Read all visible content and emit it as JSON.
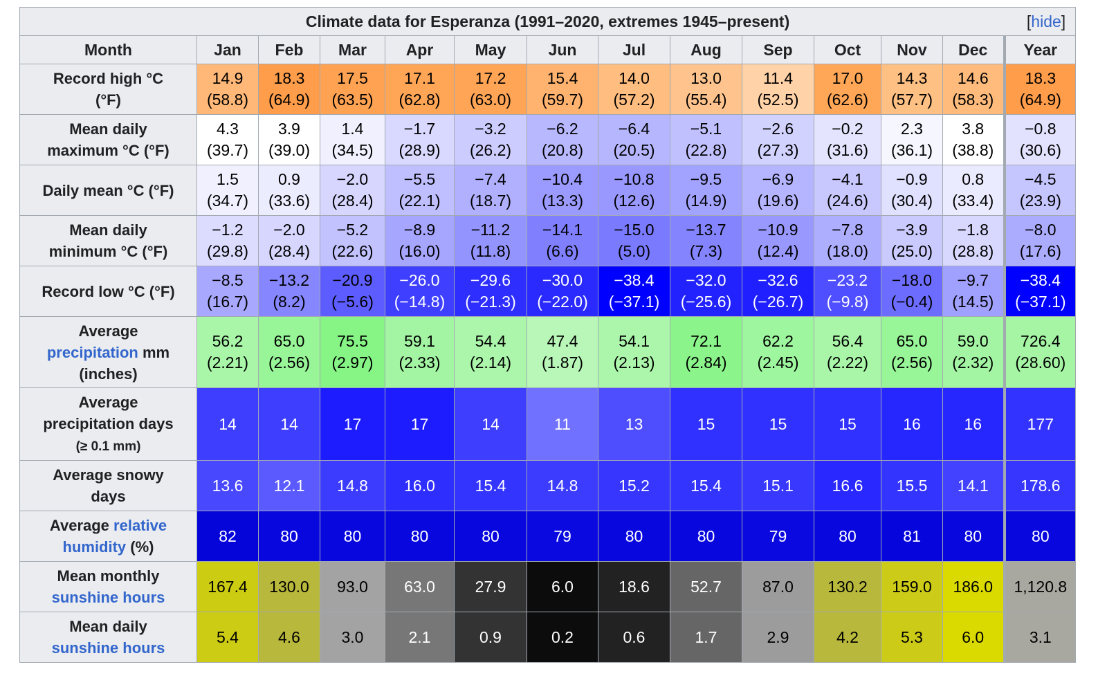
{
  "title": "Climate data for Esperanza (1991–2020, extremes 1945–present)",
  "hide_link": "hide",
  "month_header": "Month",
  "months": [
    "Jan",
    "Feb",
    "Mar",
    "Apr",
    "May",
    "Jun",
    "Jul",
    "Aug",
    "Sep",
    "Oct",
    "Nov",
    "Dec",
    "Year"
  ],
  "rows": [
    {
      "key": "record-high",
      "label_parts": [
        {
          "text": "Record high °C"
        },
        {
          "br": true
        },
        {
          "text": "(°F)"
        }
      ],
      "values": [
        "14.9",
        "18.3",
        "17.5",
        "17.1",
        "17.2",
        "15.4",
        "14.0",
        "13.0",
        "11.4",
        "17.0",
        "14.3",
        "14.6",
        "18.3"
      ],
      "sub": [
        "(58.8)",
        "(64.9)",
        "(63.5)",
        "(62.8)",
        "(63.0)",
        "(59.7)",
        "(57.2)",
        "(55.4)",
        "(52.5)",
        "(62.6)",
        "(57.7)",
        "(58.3)",
        "(64.9)"
      ],
      "bg": [
        "#ffb877",
        "#ff9d4a",
        "#ffa352",
        "#ffa656",
        "#ffa555",
        "#ffb36f",
        "#ffbd80",
        "#ffc48d",
        "#ffd2a7",
        "#ffa757",
        "#ffc083",
        "#ffbb7c",
        "#ff9d4a"
      ],
      "fg": [
        "#000000",
        "#000000",
        "#000000",
        "#000000",
        "#000000",
        "#000000",
        "#000000",
        "#000000",
        "#000000",
        "#000000",
        "#000000",
        "#000000",
        "#000000"
      ],
      "height": 73
    },
    {
      "key": "mean-max",
      "label_parts": [
        {
          "text": "Mean daily"
        },
        {
          "br": true
        },
        {
          "text": "maximum °C (°F)"
        }
      ],
      "values": [
        "4.3",
        "3.9",
        "1.4",
        "−1.7",
        "−3.2",
        "−6.2",
        "−6.4",
        "−5.1",
        "−2.6",
        "−0.2",
        "2.3",
        "3.8",
        "−0.8"
      ],
      "sub": [
        "(39.7)",
        "(39.0)",
        "(34.5)",
        "(28.9)",
        "(26.2)",
        "(20.8)",
        "(20.5)",
        "(22.8)",
        "(27.3)",
        "(31.6)",
        "(36.1)",
        "(38.8)",
        "(30.6)"
      ],
      "bg": [
        "#ffffff",
        "#ffffff",
        "#f0f0ff",
        "#d9d9ff",
        "#ccccff",
        "#b8b8ff",
        "#b6b6ff",
        "#c0c0ff",
        "#d2d2ff",
        "#e4e4ff",
        "#f6f6ff",
        "#ffffff",
        "#e2e2ff"
      ],
      "fg": [
        "#000000",
        "#000000",
        "#000000",
        "#000000",
        "#000000",
        "#000000",
        "#000000",
        "#000000",
        "#000000",
        "#000000",
        "#000000",
        "#000000",
        "#000000"
      ],
      "height": 73
    },
    {
      "key": "daily-mean",
      "label_parts": [
        {
          "text": "Daily mean °C (°F)"
        }
      ],
      "values": [
        "1.5",
        "0.9",
        "−2.0",
        "−5.5",
        "−7.4",
        "−10.4",
        "−10.8",
        "−9.5",
        "−6.9",
        "−4.1",
        "−0.9",
        "0.8",
        "−4.5"
      ],
      "sub": [
        "(34.7)",
        "(33.6)",
        "(28.4)",
        "(22.1)",
        "(18.7)",
        "(13.3)",
        "(12.6)",
        "(14.9)",
        "(19.6)",
        "(24.6)",
        "(30.4)",
        "(33.4)",
        "(23.9)"
      ],
      "bg": [
        "#f0f0ff",
        "#ececff",
        "#d6d6ff",
        "#bfbfff",
        "#b0b0ff",
        "#9a9aff",
        "#9898ff",
        "#a2a2ff",
        "#b4b4ff",
        "#c8c8ff",
        "#e0e0ff",
        "#ebebff",
        "#c6c6ff"
      ],
      "fg": [
        "#000000",
        "#000000",
        "#000000",
        "#000000",
        "#000000",
        "#000000",
        "#000000",
        "#000000",
        "#000000",
        "#000000",
        "#000000",
        "#000000",
        "#000000"
      ],
      "height": 73
    },
    {
      "key": "mean-min",
      "label_parts": [
        {
          "text": "Mean daily"
        },
        {
          "br": true
        },
        {
          "text": "minimum °C (°F)"
        }
      ],
      "values": [
        "−1.2",
        "−2.0",
        "−5.2",
        "−8.9",
        "−11.2",
        "−14.1",
        "−15.0",
        "−13.7",
        "−10.9",
        "−7.8",
        "−3.9",
        "−1.8",
        "−8.0"
      ],
      "sub": [
        "(29.8)",
        "(28.4)",
        "(22.6)",
        "(16.0)",
        "(11.8)",
        "(6.6)",
        "(5.0)",
        "(7.3)",
        "(12.4)",
        "(18.0)",
        "(25.0)",
        "(28.8)",
        "(17.6)"
      ],
      "bg": [
        "#dcdcff",
        "#d6d6ff",
        "#c2c2ff",
        "#a6a6ff",
        "#9494ff",
        "#8080ff",
        "#7a7aff",
        "#8484ff",
        "#9898ff",
        "#aeaeff",
        "#cacaff",
        "#d8d8ff",
        "#acacff"
      ],
      "fg": [
        "#000000",
        "#000000",
        "#000000",
        "#000000",
        "#000000",
        "#000000",
        "#000000",
        "#000000",
        "#000000",
        "#000000",
        "#000000",
        "#000000",
        "#000000"
      ],
      "height": 73
    },
    {
      "key": "record-low",
      "label_parts": [
        {
          "text": "Record low °C (°F)"
        }
      ],
      "values": [
        "−8.5",
        "−13.2",
        "−20.9",
        "−26.0",
        "−29.6",
        "−30.0",
        "−38.4",
        "−32.0",
        "−32.6",
        "−23.2",
        "−18.0",
        "−9.7",
        "−38.4"
      ],
      "sub": [
        "(16.7)",
        "(8.2)",
        "(−5.6)",
        "(−14.8)",
        "(−21.3)",
        "(−22.0)",
        "(−37.1)",
        "(−25.6)",
        "(−26.7)",
        "(−9.8)",
        "(−0.4)",
        "(14.5)",
        "(−37.1)"
      ],
      "bg": [
        "#a8a8ff",
        "#8686ff",
        "#5c5cff",
        "#3f3fff",
        "#2e2eff",
        "#2a2aff",
        "#0000ff",
        "#2222ff",
        "#1f1fff",
        "#4f4fff",
        "#6c6cff",
        "#a0a0ff",
        "#0000ff"
      ],
      "fg": [
        "#000000",
        "#000000",
        "#000000",
        "#ffffff",
        "#ffffff",
        "#ffffff",
        "#ffffff",
        "#ffffff",
        "#ffffff",
        "#ffffff",
        "#000000",
        "#000000",
        "#ffffff"
      ],
      "height": 73
    },
    {
      "key": "avg-precip",
      "label_parts": [
        {
          "text": "Average"
        },
        {
          "br": true
        },
        {
          "link": "precipitation"
        },
        {
          "text": " mm"
        },
        {
          "br": true
        },
        {
          "text": "(inches)"
        }
      ],
      "values": [
        "56.2",
        "65.0",
        "75.5",
        "59.1",
        "54.4",
        "47.4",
        "54.1",
        "72.1",
        "62.2",
        "56.4",
        "65.0",
        "59.0",
        "726.4"
      ],
      "sub": [
        "(2.21)",
        "(2.56)",
        "(2.97)",
        "(2.33)",
        "(2.14)",
        "(1.87)",
        "(2.13)",
        "(2.84)",
        "(2.45)",
        "(2.22)",
        "(2.56)",
        "(2.32)",
        "(28.60)"
      ],
      "bg": [
        "#a9f6a9",
        "#98f598",
        "#86f586",
        "#a3f5a3",
        "#acf6ac",
        "#b9f7b9",
        "#acf6ac",
        "#8bf58b",
        "#9ef69e",
        "#a9f6a9",
        "#98f598",
        "#a3f5a3",
        "#a5f5a5"
      ],
      "fg": [
        "#000000",
        "#000000",
        "#000000",
        "#000000",
        "#000000",
        "#000000",
        "#000000",
        "#000000",
        "#000000",
        "#000000",
        "#000000",
        "#000000",
        "#000000"
      ],
      "height": 103
    },
    {
      "key": "precip-days",
      "label_parts": [
        {
          "text": "Average"
        },
        {
          "br": true
        },
        {
          "text": "precipitation days"
        },
        {
          "br": true
        },
        {
          "sub": "(≥ 0.1 mm)"
        }
      ],
      "values": [
        "14",
        "14",
        "17",
        "17",
        "14",
        "11",
        "13",
        "15",
        "15",
        "15",
        "16",
        "16",
        "177"
      ],
      "sub": [],
      "bg": [
        "#3e3eff",
        "#3e3eff",
        "#1c1cff",
        "#1c1cff",
        "#3e3eff",
        "#7171ff",
        "#4e4eff",
        "#3131ff",
        "#3131ff",
        "#3131ff",
        "#2626ff",
        "#2626ff",
        "#3333ff"
      ],
      "fg": [
        "#ffffff",
        "#ffffff",
        "#ffffff",
        "#ffffff",
        "#ffffff",
        "#ffffff",
        "#ffffff",
        "#ffffff",
        "#ffffff",
        "#ffffff",
        "#ffffff",
        "#ffffff",
        "#ffffff"
      ],
      "height": 105
    },
    {
      "key": "snowy-days",
      "label_parts": [
        {
          "text": "Average snowy"
        },
        {
          "br": true
        },
        {
          "text": "days"
        }
      ],
      "values": [
        "13.6",
        "12.1",
        "14.8",
        "16.0",
        "15.4",
        "14.8",
        "15.2",
        "15.4",
        "15.1",
        "16.6",
        "15.5",
        "14.1",
        "178.6"
      ],
      "sub": [],
      "bg": [
        "#4848ff",
        "#5a5aff",
        "#3c3cff",
        "#2e2eff",
        "#3434ff",
        "#3c3cff",
        "#3636ff",
        "#3434ff",
        "#3838ff",
        "#2828ff",
        "#3434ff",
        "#4242ff",
        "#3636ff"
      ],
      "fg": [
        "#ffffff",
        "#ffffff",
        "#ffffff",
        "#ffffff",
        "#ffffff",
        "#ffffff",
        "#ffffff",
        "#ffffff",
        "#ffffff",
        "#ffffff",
        "#ffffff",
        "#ffffff",
        "#ffffff"
      ],
      "height": 73
    },
    {
      "key": "humidity",
      "label_parts": [
        {
          "text": "Average "
        },
        {
          "link": "relative"
        },
        {
          "br": true
        },
        {
          "link": "humidity"
        },
        {
          "text": " (%)"
        }
      ],
      "values": [
        "82",
        "80",
        "80",
        "80",
        "80",
        "79",
        "80",
        "80",
        "79",
        "80",
        "81",
        "80",
        "80"
      ],
      "sub": [],
      "bg": [
        "#0505d9",
        "#0808de",
        "#0808de",
        "#0808de",
        "#0808de",
        "#0a0ae0",
        "#0808de",
        "#0808de",
        "#0a0ae0",
        "#0808de",
        "#0606dc",
        "#0808de",
        "#0808de"
      ],
      "fg": [
        "#ffffff",
        "#ffffff",
        "#ffffff",
        "#ffffff",
        "#ffffff",
        "#ffffff",
        "#ffffff",
        "#ffffff",
        "#ffffff",
        "#ffffff",
        "#ffffff",
        "#ffffff",
        "#ffffff"
      ],
      "height": 73
    },
    {
      "key": "monthly-sunshine",
      "label_parts": [
        {
          "text": "Mean monthly"
        },
        {
          "br": true
        },
        {
          "link": "sunshine hours"
        }
      ],
      "values": [
        "167.4",
        "130.0",
        "93.0",
        "63.0",
        "27.9",
        "6.0",
        "18.6",
        "52.7",
        "87.0",
        "130.2",
        "159.0",
        "186.0",
        "1,120.8"
      ],
      "sub": [],
      "bg": [
        "#cccc12",
        "#b8b83c",
        "#a3a3a3",
        "#777777",
        "#333333",
        "#0c0c0c",
        "#222222",
        "#666666",
        "#9c9c9c",
        "#b8b83c",
        "#cccc18",
        "#dada00",
        "#a8a8a0"
      ],
      "fg": [
        "#000000",
        "#000000",
        "#000000",
        "#ffffff",
        "#ffffff",
        "#ffffff",
        "#ffffff",
        "#ffffff",
        "#000000",
        "#000000",
        "#000000",
        "#000000",
        "#000000"
      ],
      "height": 73
    },
    {
      "key": "daily-sunshine",
      "label_parts": [
        {
          "text": "Mean daily"
        },
        {
          "br": true
        },
        {
          "link": "sunshine hours"
        }
      ],
      "values": [
        "5.4",
        "4.6",
        "3.0",
        "2.1",
        "0.9",
        "0.2",
        "0.6",
        "1.7",
        "2.9",
        "4.2",
        "5.3",
        "6.0",
        "3.1"
      ],
      "sub": [],
      "bg": [
        "#cccc14",
        "#b8b83c",
        "#a3a3a3",
        "#777777",
        "#333333",
        "#0c0c0c",
        "#222222",
        "#666666",
        "#9c9c9c",
        "#b8b83c",
        "#cccc18",
        "#dada00",
        "#a8a8a0"
      ],
      "fg": [
        "#000000",
        "#000000",
        "#000000",
        "#ffffff",
        "#ffffff",
        "#ffffff",
        "#ffffff",
        "#ffffff",
        "#000000",
        "#000000",
        "#000000",
        "#000000",
        "#000000"
      ],
      "height": 73
    }
  ]
}
